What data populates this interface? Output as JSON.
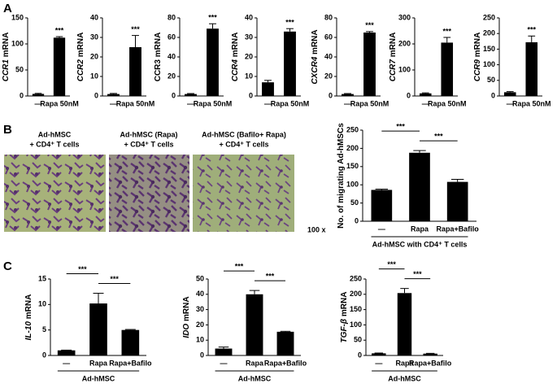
{
  "panel_labels": [
    "A",
    "B",
    "C"
  ],
  "images": [
    {
      "caption": [
        "Ad-hMSC",
        "+ CD4⁺ T cells"
      ]
    },
    {
      "caption": [
        "Ad-hMSC  (Rapa)",
        "+ CD4⁺ T cells"
      ]
    },
    {
      "caption": [
        "Ad-hMSC  (Bafilo+ Rapa)",
        "+ CD4⁺ T cells"
      ]
    }
  ],
  "magnification": "100 x",
  "chart_data": [
    {
      "type": "bar",
      "ylabel": {
        "gene": "CCR1",
        "unit": "mRNA"
      },
      "italic": true,
      "categories": [
        "—",
        "Rapa 50nM"
      ],
      "values": [
        4,
        112
      ],
      "errors": [
        1,
        2
      ],
      "color": "#000000",
      "ylim": [
        0,
        150
      ],
      "yticks": [
        0,
        50,
        100,
        150
      ],
      "significance": [
        null,
        "***"
      ]
    },
    {
      "type": "bar",
      "ylabel": {
        "gene": "CCR2",
        "unit": "mRNA"
      },
      "italic": true,
      "categories": [
        "—",
        "Rapa 50nM"
      ],
      "values": [
        1,
        25
      ],
      "errors": [
        0.3,
        6
      ],
      "color": "#000000",
      "ylim": [
        0,
        40
      ],
      "yticks": [
        0,
        10,
        20,
        30,
        40
      ],
      "significance": [
        null,
        "***"
      ]
    },
    {
      "type": "bar",
      "ylabel": {
        "gene": "CCR3",
        "unit": "mRNA"
      },
      "italic": false,
      "categories": [
        "—",
        "Rapa 50nM"
      ],
      "values": [
        2,
        69
      ],
      "errors": [
        0.5,
        5
      ],
      "color": "#000000",
      "ylim": [
        0,
        80
      ],
      "yticks": [
        0,
        20,
        40,
        60,
        80
      ],
      "significance": [
        null,
        "***"
      ]
    },
    {
      "type": "bar",
      "ylabel": {
        "gene": "CCR4",
        "unit": "mRNA"
      },
      "italic": true,
      "categories": [
        "—",
        "Rapa 50nM"
      ],
      "values": [
        7,
        33
      ],
      "errors": [
        1,
        1.5
      ],
      "color": "#000000",
      "ylim": [
        0,
        40
      ],
      "yticks": [
        0,
        10,
        20,
        30,
        40
      ],
      "significance": [
        null,
        "***"
      ]
    },
    {
      "type": "bar",
      "ylabel": {
        "gene": "CXCR4",
        "unit": "mRNA"
      },
      "italic": true,
      "categories": [
        "—",
        "Rapa 50nM"
      ],
      "values": [
        2,
        65
      ],
      "errors": [
        0.5,
        1
      ],
      "color": "#000000",
      "ylim": [
        0,
        80
      ],
      "yticks": [
        0,
        20,
        40,
        60,
        80
      ],
      "significance": [
        null,
        "***"
      ]
    },
    {
      "type": "bar",
      "ylabel": {
        "gene": "CCR7",
        "unit": "mRNA"
      },
      "italic": true,
      "categories": [
        "—",
        "Rapa 50nM"
      ],
      "values": [
        10,
        205
      ],
      "errors": [
        2,
        20
      ],
      "color": "#000000",
      "ylim": [
        0,
        300
      ],
      "yticks": [
        0,
        100,
        200,
        300
      ],
      "significance": [
        null,
        "***"
      ]
    },
    {
      "type": "bar",
      "ylabel": {
        "gene": "CCR9",
        "unit": "mRNA"
      },
      "italic": true,
      "categories": [
        "—",
        "Rapa 50nM"
      ],
      "values": [
        12,
        172
      ],
      "errors": [
        2,
        20
      ],
      "color": "#000000",
      "ylim": [
        0,
        250
      ],
      "yticks": [
        0,
        50,
        100,
        150,
        200,
        250
      ],
      "significance": [
        null,
        "***"
      ]
    },
    {
      "type": "bar",
      "ylabel": {
        "unit": "No. of migrating Ad-hMSCs"
      },
      "italic": false,
      "categories": [
        "—",
        "Rapa",
        "Rapa+Bafilo"
      ],
      "values": [
        86,
        188,
        108
      ],
      "errors": [
        2,
        6,
        7
      ],
      "color": "#000000",
      "ylim": [
        0,
        250
      ],
      "yticks": [
        0,
        50,
        100,
        150,
        200,
        250
      ],
      "group_label": "Ad-hMSC with CD4⁺ T cells",
      "brackets": [
        {
          "pair": [
            0,
            1
          ],
          "label": "***"
        },
        {
          "pair": [
            1,
            2
          ],
          "label": "***"
        }
      ]
    },
    {
      "type": "bar",
      "ylabel": {
        "gene": "IL-10",
        "unit": "mRNA"
      },
      "italic": true,
      "categories": [
        "—",
        "Rapa",
        "Rapa+Bafilo"
      ],
      "values": [
        1,
        10.2,
        5
      ],
      "errors": [
        0.05,
        2,
        0.1
      ],
      "color": "#000000",
      "ylim": [
        0,
        15
      ],
      "yticks": [
        0,
        5,
        10,
        15
      ],
      "group_label": "Ad-hMSC",
      "brackets": [
        {
          "pair": [
            0,
            1
          ],
          "label": "***"
        },
        {
          "pair": [
            1,
            2
          ],
          "label": "***"
        }
      ]
    },
    {
      "type": "bar",
      "ylabel": {
        "gene": "IDO",
        "unit": "mRNA"
      },
      "italic": true,
      "categories": [
        "—",
        "Rapa",
        "Rapa+Bafilo"
      ],
      "values": [
        4.5,
        40,
        15.5
      ],
      "errors": [
        1,
        2.5,
        0.3
      ],
      "color": "#000000",
      "ylim": [
        0,
        50
      ],
      "yticks": [
        0,
        10,
        20,
        30,
        40,
        50
      ],
      "group_label": "Ad-hMSC",
      "brackets": [
        {
          "pair": [
            0,
            1
          ],
          "label": "***"
        },
        {
          "pair": [
            1,
            2
          ],
          "label": "***"
        }
      ]
    },
    {
      "type": "bar",
      "ylabel": {
        "gene": "TGF-β",
        "unit": "mRNA"
      },
      "italic": true,
      "categories": [
        "—",
        "Rapa",
        "Rapa+Bafilo"
      ],
      "values": [
        7,
        204,
        6
      ],
      "errors": [
        1,
        15,
        1
      ],
      "color": "#000000",
      "ylim": [
        0,
        250
      ],
      "yticks": [
        0,
        50,
        100,
        150,
        200,
        250
      ],
      "group_label": "Ad-hMSC",
      "brackets": [
        {
          "pair": [
            0,
            1
          ],
          "label": "***"
        },
        {
          "pair": [
            1,
            2
          ],
          "label": "***"
        }
      ]
    }
  ]
}
